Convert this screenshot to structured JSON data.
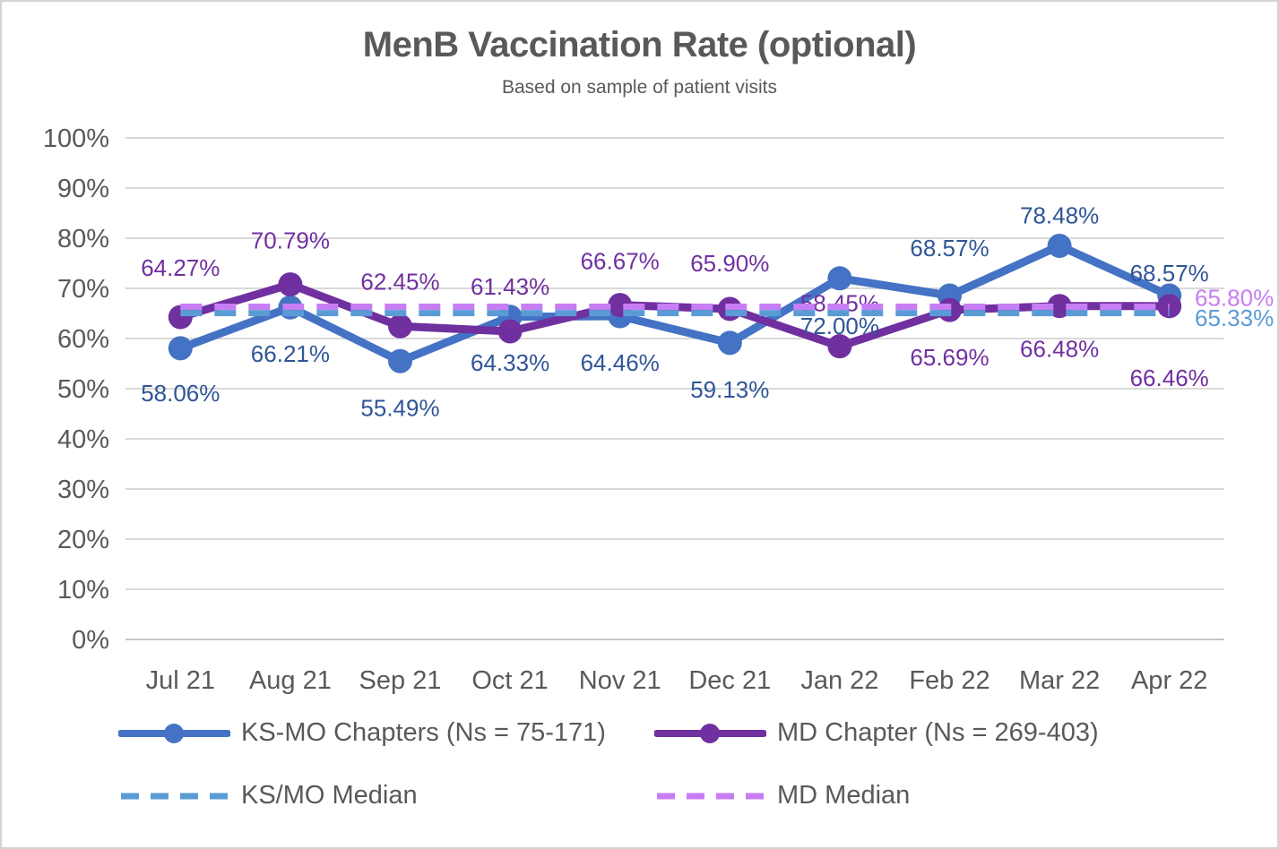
{
  "title": "MenB Vaccination Rate (optional)",
  "subtitle": "Based on sample of patient visits",
  "colors": {
    "ksmo_line": "#4472C4",
    "ksmo_label": "#2F5597",
    "md_line": "#7030A0",
    "md_label": "#7030A0",
    "ksmo_median": "#5B9BD5",
    "md_median": "#C77DF3",
    "grid": "#D9D9D9",
    "axis_line": "#C6C6C6",
    "text": "#595959"
  },
  "chart_data": {
    "type": "line",
    "title": "MenB Vaccination Rate (optional)",
    "subtitle": "Based on sample of patient visits",
    "categories": [
      "Jul 21",
      "Aug 21",
      "Sep 21",
      "Oct 21",
      "Nov 21",
      "Dec 21",
      "Jan 22",
      "Feb 22",
      "Mar 22",
      "Apr 22"
    ],
    "series": [
      {
        "name": "KS-MO Chapters (Ns = 75-171)",
        "color": "#4472C4",
        "label_color": "#2F5597",
        "line_style": "solid",
        "marker": "circle",
        "values": [
          58.06,
          66.21,
          55.49,
          64.33,
          64.46,
          59.13,
          72.0,
          68.57,
          78.48,
          68.57
        ],
        "labels": [
          "58.06%",
          "66.21%",
          "55.49%",
          "64.33%",
          "64.46%",
          "59.13%",
          "72.00%",
          "68.57%",
          "78.48%",
          "68.57%"
        ],
        "label_dy": [
          50,
          52,
          52,
          51,
          52,
          52,
          53,
          -53,
          -34,
          -25
        ]
      },
      {
        "name": "MD Chapter (Ns = 269-403)",
        "color": "#7030A0",
        "label_color": "#7030A0",
        "line_style": "solid",
        "marker": "circle",
        "values": [
          64.27,
          70.79,
          62.45,
          61.43,
          66.67,
          65.9,
          58.45,
          65.69,
          66.48,
          66.46
        ],
        "labels": [
          "64.27%",
          "70.79%",
          "62.45%",
          "61.43%",
          "66.67%",
          "65.90%",
          "58.45%",
          "65.69%",
          "66.48%",
          "66.46%"
        ],
        "label_dy": [
          -55,
          -49,
          -50,
          -50,
          -49,
          -51,
          -48,
          53,
          48,
          80
        ]
      }
    ],
    "median_lines": [
      {
        "name": "KS/MO Median",
        "value": 65.33,
        "label": "65.33%",
        "color": "#5B9BD5",
        "line_style": "dashed"
      },
      {
        "name": "MD Median",
        "value": 65.8,
        "label": "65.80%",
        "color": "#C77DF3",
        "line_style": "dashed"
      }
    ],
    "y_axis": {
      "min": 0,
      "max": 100,
      "step": 10,
      "tick_labels": [
        "0%",
        "10%",
        "20%",
        "30%",
        "40%",
        "50%",
        "60%",
        "70%",
        "80%",
        "90%",
        "100%"
      ]
    },
    "grid": true,
    "legend_position": "bottom"
  }
}
